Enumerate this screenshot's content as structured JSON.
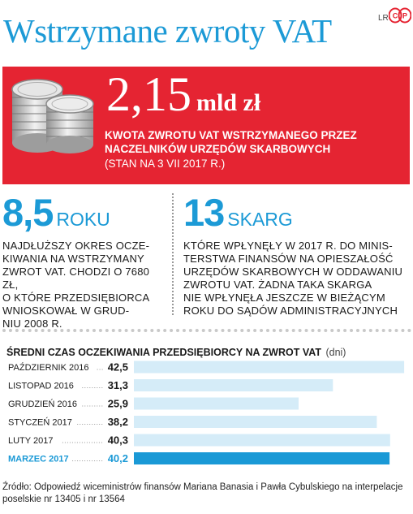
{
  "header": {
    "title": "Wstrzymane zwroty VAT",
    "credit": "LR"
  },
  "logo": {
    "icon": "cp-logo-icon",
    "text": "CP"
  },
  "colors": {
    "accent": "#1c9ad6",
    "red": "#e52432",
    "bar": "#d5ecf8",
    "bar_highlight": "#1a99d6"
  },
  "highlight": {
    "icon": "coins-icon",
    "amount": "2,15",
    "unit": "mld zł",
    "caption": "KWOTA ZWROTU VAT WSTRZYMANEGO PRZEZ NACZELNIKÓW URZĘDÓW SKARBOWYCH",
    "note": "(STAN NA 3 VII 2017 R.)"
  },
  "stats": [
    {
      "number": "8,5",
      "unit": "ROKU",
      "text": "NAJDŁUŻSZY OKRES OCZE-\nKIWANIA NA WSTRZYMANY\nZWROT VAT. CHODZI O 7680 ZŁ,\nO KTÓRE PRZEDSIĘBIORCA\nWNIOSKOWAŁ W GRUD-\nNIU 2008 R."
    },
    {
      "number": "13",
      "unit": "SKARG",
      "text": "KTÓRE WPŁYNĘŁY W 2017 R. DO MINIS-\nTERSTWA FINANSÓW NA OPIESZAŁOŚĆ\nURZĘDÓW SKARBOWYCH W ODDAWANIU\nZWROTU VAT. ŻADNA TAKA SKARGA\nNIE WPŁYNĘŁA JESZCZE W BIEŻĄCYM\nROKU DO SĄDÓW ADMINISTRACYJNYCH"
    }
  ],
  "chart_data": {
    "type": "bar",
    "orientation": "horizontal",
    "title": "Średni czas oczekiwania przedsiębiorcy na zwrot VAT",
    "unit": "(dni)",
    "categories": [
      "PAŹDZIERNIK 2016",
      "LISTOPAD 2016",
      "GRUDZIEŃ 2016",
      "STYCZEŃ 2017",
      "LUTY 2017",
      "MARZEC 2017"
    ],
    "values": [
      42.5,
      31.3,
      25.9,
      38.2,
      40.3,
      40.2
    ],
    "value_labels": [
      "42,5",
      "31,3",
      "25,9",
      "38,2",
      "40,3",
      "40,2"
    ],
    "highlight_index": 5,
    "xlim": [
      0,
      43
    ]
  },
  "source": "Źródło: Odpowiedź wiceministrów finansów Mariana Banasia i Pawła Cybulskiego na interpelacje poselskie nr 13405 i nr 13564"
}
